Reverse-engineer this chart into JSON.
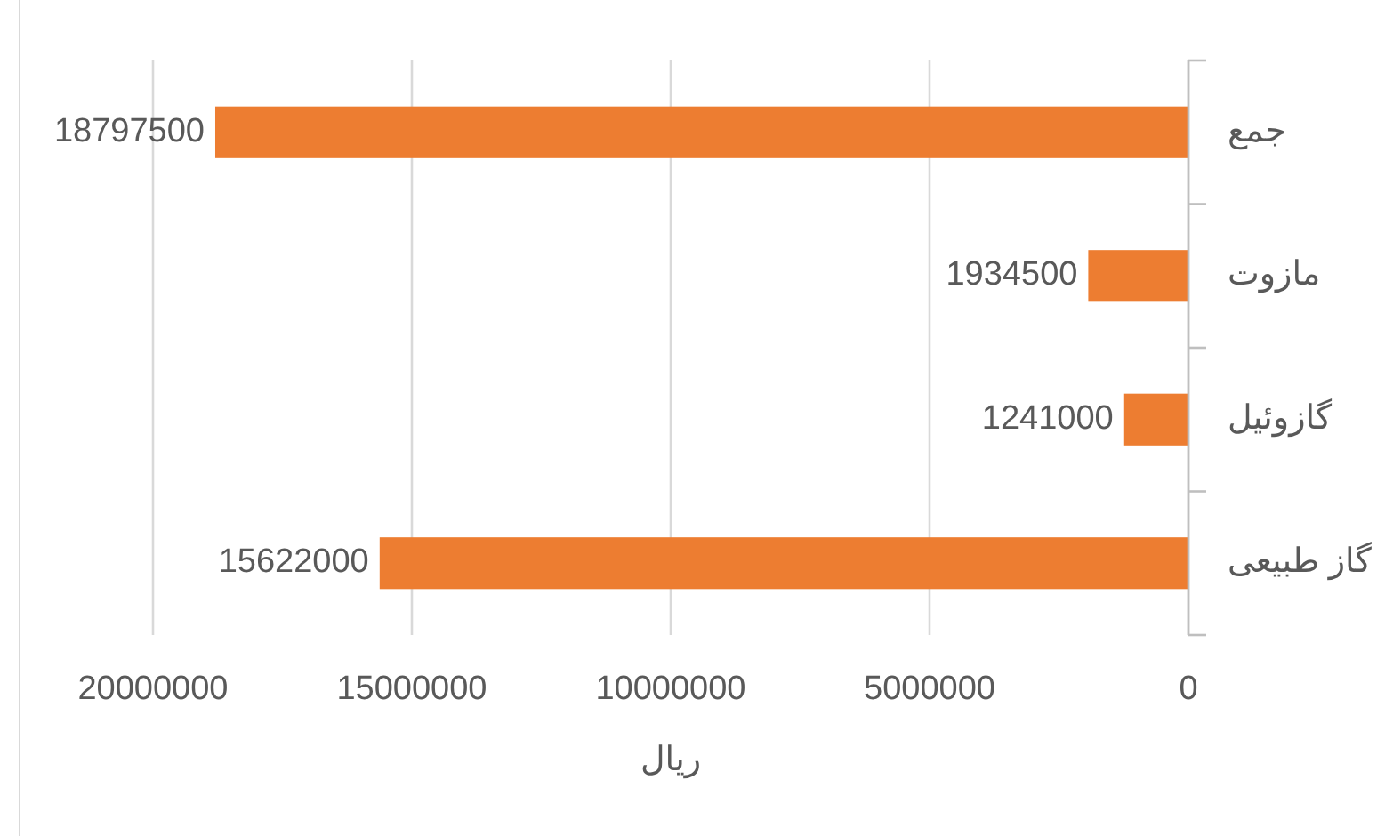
{
  "chart_data": {
    "type": "bar",
    "orientation": "horizontal",
    "categories": [
      "جمع",
      "مازوت",
      "گازوئیل",
      "گاز طبیعی"
    ],
    "values": [
      18797500,
      1934500,
      1241000,
      15622000
    ],
    "color": "#ed7d31",
    "xlabel": "ریال",
    "xlim": [
      20000000,
      0
    ],
    "xticks": [
      0,
      5000000,
      10000000,
      15000000,
      20000000
    ],
    "grid": "x",
    "data_labels": true
  }
}
